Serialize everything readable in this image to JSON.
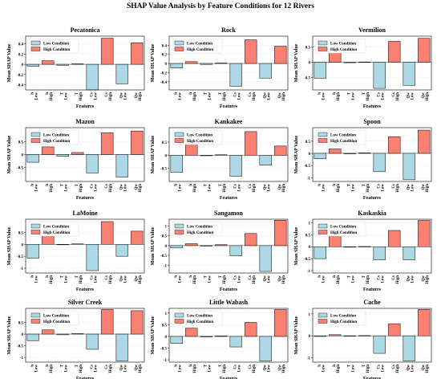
{
  "title": "SHAP Value Analysis by Feature Conditions for 12 Rivers",
  "colors": {
    "low": "#add8e6",
    "high": "#fa8072",
    "edge": "#000000"
  },
  "legend": {
    "low": "Low Condition",
    "high": "High Condition"
  },
  "xlabel": "Features",
  "ylabel": "Mean SHAP Value",
  "categories": [
    "h Low",
    "h High",
    "T Low",
    "T High",
    "Cs Low",
    "Cs High",
    "Qw Low",
    "Qw High"
  ],
  "chart_data": [
    {
      "type": "bar",
      "title": "Pecatonica",
      "ylim": [
        -0.5,
        0.55
      ],
      "yticks": [
        -0.4,
        -0.2,
        0.0,
        0.2,
        0.4
      ],
      "values": [
        -0.04,
        0.07,
        -0.02,
        0.01,
        -0.5,
        0.51,
        -0.38,
        0.42
      ]
    },
    {
      "type": "bar",
      "title": "Rock",
      "ylim": [
        -0.58,
        0.6
      ],
      "yticks": [
        -0.4,
        -0.2,
        0.0,
        0.2,
        0.4
      ],
      "values": [
        -0.1,
        0.04,
        -0.02,
        0.01,
        -0.5,
        0.52,
        -0.32,
        0.38
      ]
    },
    {
      "type": "bar",
      "title": "Vermilion",
      "ylim": [
        -0.9,
        0.85
      ],
      "yticks": [
        -0.5,
        0.0,
        0.5
      ],
      "values": [
        -0.52,
        0.5,
        -0.01,
        0.01,
        -0.85,
        0.68,
        -0.75,
        0.78
      ]
    },
    {
      "type": "bar",
      "title": "Mazon",
      "ylim": [
        -1.05,
        1.05
      ],
      "yticks": [
        -0.5,
        0.0,
        0.5
      ],
      "values": [
        -0.3,
        0.3,
        -0.07,
        0.08,
        -0.72,
        0.85,
        -0.88,
        0.92
      ]
    },
    {
      "type": "bar",
      "title": "Kankakee",
      "ylim": [
        -1.0,
        1.05
      ],
      "yticks": [
        -0.5,
        0.0,
        0.5
      ],
      "values": [
        -0.65,
        0.48,
        -0.02,
        0.02,
        -0.8,
        0.9,
        -0.38,
        0.35
      ]
    },
    {
      "type": "bar",
      "title": "Spoon",
      "ylim": [
        -1.15,
        1.05
      ],
      "yticks": [
        -1.0,
        -0.5,
        0.0,
        0.5
      ],
      "values": [
        -0.22,
        0.18,
        -0.02,
        0.02,
        -0.75,
        0.68,
        -1.08,
        0.95
      ]
    },
    {
      "type": "bar",
      "title": "LaMoine",
      "ylim": [
        -1.2,
        1.05
      ],
      "yticks": [
        -1.0,
        -0.5,
        0.0,
        0.5
      ],
      "values": [
        -0.58,
        0.42,
        -0.02,
        0.02,
        -1.1,
        0.95,
        -0.5,
        0.55
      ]
    },
    {
      "type": "bar",
      "title": "Sangamon",
      "ylim": [
        -1.4,
        1.35
      ],
      "yticks": [
        -1.0,
        -0.5,
        0.0,
        0.5,
        1.0
      ],
      "values": [
        -0.12,
        0.1,
        -0.02,
        0.05,
        -0.52,
        0.62,
        -1.32,
        1.3
      ]
    },
    {
      "type": "bar",
      "title": "Kaskaskia",
      "ylim": [
        -1.1,
        1.15
      ],
      "yticks": [
        -1.0,
        -0.5,
        0.0,
        0.5,
        1.0
      ],
      "values": [
        -0.5,
        0.55,
        -0.01,
        0.01,
        -0.55,
        0.68,
        -0.55,
        1.1
      ]
    },
    {
      "type": "bar",
      "title": "Silver Creek",
      "ylim": [
        -1.2,
        1.1
      ],
      "yticks": [
        -1.0,
        -0.5,
        0.0,
        0.5
      ],
      "values": [
        -0.28,
        0.18,
        -0.03,
        0.02,
        -0.65,
        1.05,
        -1.15,
        1.0
      ]
    },
    {
      "type": "bar",
      "title": "Little Wabash",
      "ylim": [
        -1.1,
        1.2
      ],
      "yticks": [
        -1.0,
        -0.5,
        0.0,
        0.5,
        1.0
      ],
      "values": [
        -0.3,
        0.35,
        -0.02,
        0.02,
        -0.45,
        0.6,
        -1.05,
        1.15
      ]
    },
    {
      "type": "bar",
      "title": "Cache",
      "ylim": [
        -1.2,
        1.25
      ],
      "yticks": [
        -1,
        0,
        1
      ],
      "values": [
        -0.03,
        0.05,
        -0.01,
        0.01,
        -0.8,
        0.55,
        -1.15,
        1.2
      ]
    }
  ]
}
